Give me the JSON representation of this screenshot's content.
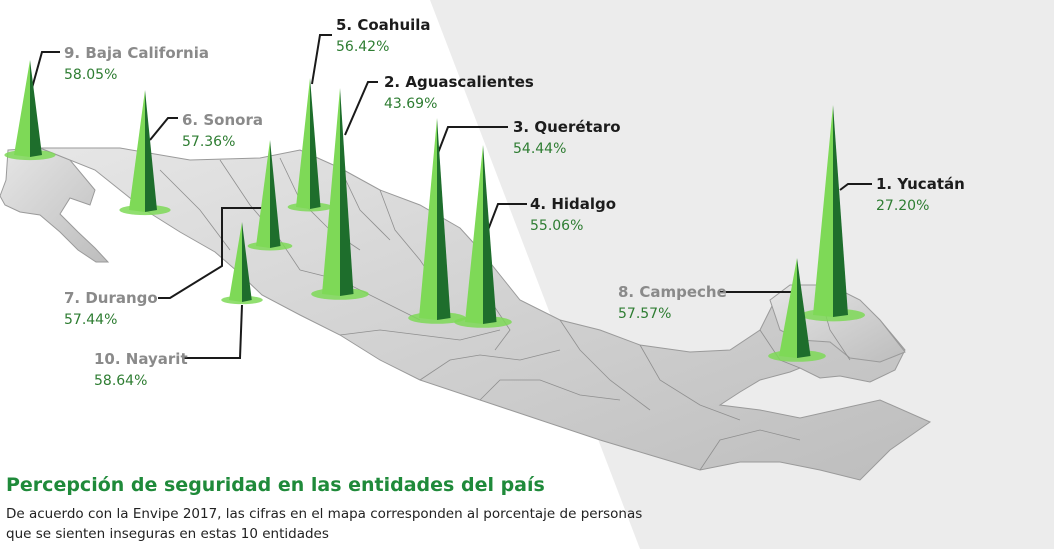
{
  "header": {
    "title": "Percepción de seguridad en las entidades del país",
    "subtitle": "De acuerdo con la Envipe 2017, las cifras en el mapa corresponden al porcentaje de personas que se sienten inseguras en estas 10 entidades"
  },
  "colors": {
    "accent": "#1f8a3a",
    "cone_light": "#7ed957",
    "cone_dark": "#1e6e2c",
    "value_text": "#2e7d32",
    "map_fill": "#d9d9d9",
    "background_band": "#e8e8e8"
  },
  "entities": [
    {
      "rank": "1.",
      "name": "Yucatán",
      "label": "1. Yucatán",
      "value": "27.20%",
      "pct": 27.2
    },
    {
      "rank": "2.",
      "name": "Aguascalientes",
      "label": "2. Aguascalientes",
      "value": "43.69%",
      "pct": 43.69
    },
    {
      "rank": "3.",
      "name": "Querétaro",
      "label": "3. Querétaro",
      "value": "54.44%",
      "pct": 54.44
    },
    {
      "rank": "4.",
      "name": "Hidalgo",
      "label": "4. Hidalgo",
      "value": "55.06%",
      "pct": 55.06
    },
    {
      "rank": "5.",
      "name": "Coahuila",
      "label": "5. Coahuila",
      "value": "56.42%",
      "pct": 56.42
    },
    {
      "rank": "6.",
      "name": "Sonora",
      "label": "6. Sonora",
      "value": "57.36%",
      "pct": 57.36
    },
    {
      "rank": "7.",
      "name": "Durango",
      "label": "7. Durango",
      "value": "57.44%",
      "pct": 57.44
    },
    {
      "rank": "8.",
      "name": "Campeche",
      "label": "8. Campeche",
      "value": "57.57%",
      "pct": 57.57
    },
    {
      "rank": "9.",
      "name": "Baja California",
      "label": "9. Baja California",
      "value": "58.05%",
      "pct": 58.05
    },
    {
      "rank": "10.",
      "name": "Nayarit",
      "label": "10. Nayarit",
      "value": "58.64%",
      "pct": 58.64
    }
  ]
}
